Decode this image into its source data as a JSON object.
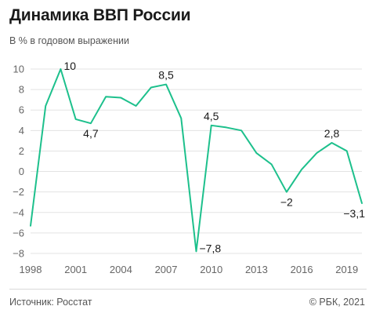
{
  "header": {
    "title": "Динамика ВВП России",
    "subtitle": "В % в годовом выражении"
  },
  "footer": {
    "source": "Источник: Росстат",
    "copyright": "© РБК, 2021"
  },
  "colors": {
    "line": "#1dc08c",
    "grid": "#e3e3e3",
    "axis_text": "#666666",
    "label_text": "#1a1a1a"
  },
  "chart_data": {
    "type": "line",
    "title": "Динамика ВВП России",
    "subtitle": "В % в годовом выражении",
    "xlabel": "",
    "ylabel": "",
    "xlim": [
      1998,
      2020
    ],
    "ylim": [
      -8,
      10
    ],
    "y_ticks": [
      10,
      8,
      6,
      4,
      2,
      0,
      -2,
      -4,
      -6,
      -8
    ],
    "y_tick_labels": [
      "10",
      "8",
      "6",
      "4",
      "2",
      "0",
      "−2",
      "−4",
      "−6",
      "−8"
    ],
    "x_ticks": [
      1998,
      2001,
      2004,
      2007,
      2010,
      2013,
      2016,
      2019
    ],
    "x_tick_labels": [
      "1998",
      "2001",
      "2004",
      "2007",
      "2010",
      "2013",
      "2016",
      "2019"
    ],
    "grid": true,
    "series": [
      {
        "x": [
          1998,
          1999,
          2000,
          2001,
          2002,
          2003,
          2004,
          2005,
          2006,
          2007,
          2008,
          2009,
          2010,
          2011,
          2012,
          2013,
          2014,
          2015,
          2016,
          2017,
          2018,
          2019,
          2020
        ],
        "values": [
          -5.3,
          6.4,
          10.0,
          5.1,
          4.7,
          7.3,
          7.2,
          6.4,
          8.2,
          8.5,
          5.2,
          -7.8,
          4.5,
          4.3,
          4.0,
          1.8,
          0.7,
          -2.0,
          0.2,
          1.8,
          2.8,
          2.0,
          -3.1
        ]
      }
    ],
    "annotations": [
      {
        "x": 2000,
        "y": 10.0,
        "text": "10",
        "pos": "right"
      },
      {
        "x": 2002,
        "y": 4.7,
        "text": "4,7",
        "pos": "below"
      },
      {
        "x": 2007,
        "y": 8.5,
        "text": "8,5",
        "pos": "above"
      },
      {
        "x": 2009,
        "y": -7.8,
        "text": "−7,8",
        "pos": "right"
      },
      {
        "x": 2010,
        "y": 4.5,
        "text": "4,5",
        "pos": "above"
      },
      {
        "x": 2015,
        "y": -2.0,
        "text": "−2",
        "pos": "below"
      },
      {
        "x": 2018,
        "y": 2.8,
        "text": "2,8",
        "pos": "above"
      },
      {
        "x": 2020,
        "y": -3.1,
        "text": "−3,1",
        "pos": "below"
      }
    ]
  }
}
